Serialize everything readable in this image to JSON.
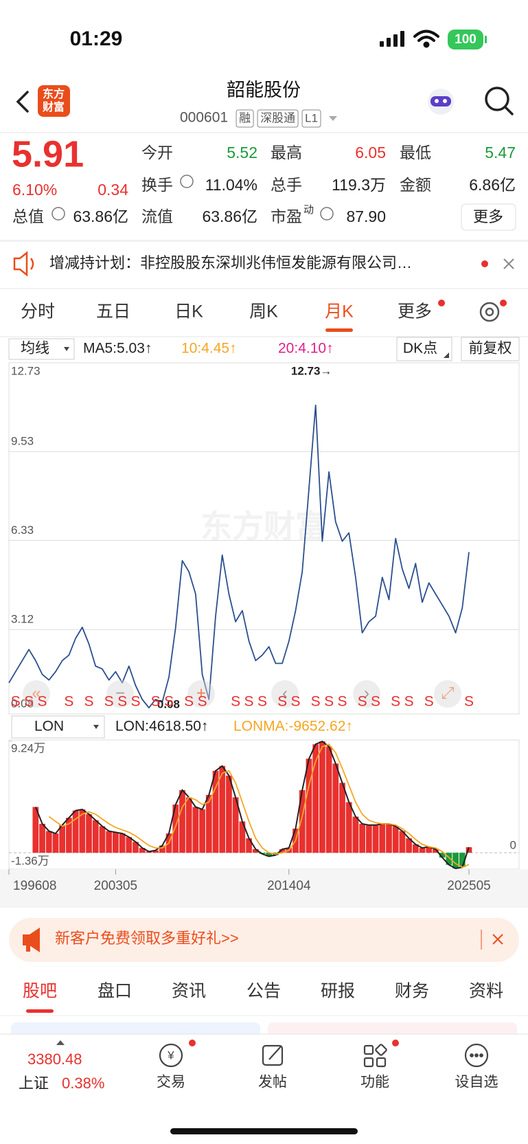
{
  "status": {
    "time": "01:29",
    "battery": "100"
  },
  "header": {
    "logo": [
      "东方",
      "财富"
    ],
    "title": "韶能股份",
    "code": "000601",
    "badges": [
      "融",
      "深股通",
      "L1"
    ]
  },
  "quote": {
    "price": "5.91",
    "change_pct": "6.10%",
    "change": "0.34",
    "more": "更多",
    "fields": [
      {
        "label": "今开",
        "value": "5.52",
        "color": "#1a9a3a"
      },
      {
        "label": "最高",
        "value": "6.05",
        "color": "#e8312f"
      },
      {
        "label": "最低",
        "value": "5.47",
        "color": "#1a9a3a"
      },
      {
        "label": "换手",
        "value": "11.04%",
        "color": "#222222"
      },
      {
        "label": "总手",
        "value": "119.3万",
        "color": "#222222"
      },
      {
        "label": "金额",
        "value": "6.86亿",
        "color": "#222222"
      },
      {
        "label": "总值",
        "value": "63.86亿",
        "color": "#222222"
      },
      {
        "label": "流值",
        "value": "63.86亿",
        "color": "#222222"
      },
      {
        "label": "市盈",
        "sup": "动",
        "value": "87.90",
        "color": "#222222"
      }
    ]
  },
  "notice": "增减持计划：非控股股东深圳兆伟恒发能源有限公司…",
  "tabs": {
    "items": [
      "分时",
      "五日",
      "日K",
      "周K",
      "月K",
      "更多"
    ],
    "active": 4
  },
  "indicator": {
    "selector": "均线",
    "ma5": "MA5:5.03↑",
    "ma10": "10:4.45↑",
    "ma20": "20:4.10↑",
    "dk": "DK点",
    "adjust": "前复权"
  },
  "watermark": "东方财富",
  "signals": {
    "label": "S",
    "at": [
      1,
      3,
      5,
      9,
      12,
      15,
      17,
      19,
      22,
      24,
      27,
      29,
      34,
      36,
      38,
      41,
      43,
      46,
      48,
      50,
      53,
      55,
      58,
      60,
      63,
      69
    ]
  },
  "chart_data": [
    {
      "type": "line",
      "color": "#2a4f8f",
      "grid": true,
      "ylim": [
        0.08,
        12.73
      ],
      "yticks": [
        12.73,
        9.53,
        6.33,
        3.12,
        0.08
      ],
      "high_label": "12.73→",
      "low_label": "0.08",
      "values": [
        1.2,
        1.6,
        2.0,
        2.4,
        2.0,
        1.5,
        1.3,
        1.6,
        2.0,
        2.2,
        2.8,
        3.2,
        2.6,
        1.8,
        1.7,
        1.3,
        1.6,
        1.2,
        1.8,
        1.1,
        0.6,
        0.3,
        0.6,
        0.5,
        1.4,
        3.2,
        5.6,
        5.2,
        4.4,
        1.5,
        0.6,
        3.6,
        5.8,
        4.4,
        3.4,
        3.8,
        2.7,
        2.0,
        2.2,
        2.5,
        1.9,
        1.9,
        2.7,
        3.8,
        5.2,
        8.2,
        11.2,
        6.3,
        8.8,
        7.0,
        6.3,
        6.6,
        5.0,
        3.0,
        3.4,
        3.6,
        5.0,
        4.2,
        6.4,
        5.3,
        4.6,
        5.5,
        4.1,
        4.8,
        4.4,
        4.0,
        3.6,
        3.0,
        3.9,
        5.91
      ]
    },
    {
      "type": "bar",
      "indicator": "LON",
      "ylim": [
        -1.36,
        9.24
      ],
      "yticks": [
        {
          "value": 9.24,
          "label": "9.24万"
        },
        0,
        {
          "value": -1.36,
          "label": "-1.36万"
        }
      ],
      "categories": [
        "199608",
        null,
        null,
        null,
        null,
        null,
        null,
        null,
        null,
        null,
        null,
        null,
        null,
        null,
        null,
        null,
        "200305",
        null,
        null,
        null,
        null,
        null,
        null,
        null,
        null,
        null,
        null,
        null,
        null,
        null,
        null,
        null,
        null,
        null,
        null,
        null,
        null,
        null,
        null,
        null,
        null,
        null,
        "201404",
        null,
        null,
        null,
        null,
        null,
        null,
        null,
        null,
        null,
        null,
        null,
        null,
        null,
        null,
        null,
        null,
        null,
        null,
        null,
        null,
        null,
        null,
        null,
        null,
        null,
        null,
        "202505"
      ],
      "series": [
        {
          "name": "LON:4618.50↑",
          "color": "#e8312f",
          "negative_color": "#1a9a3a",
          "outline": "#222222",
          "values": [
            null,
            null,
            null,
            null,
            3.8,
            2.4,
            1.8,
            1.6,
            2.3,
            2.9,
            3.5,
            3.6,
            3.2,
            2.7,
            2.2,
            1.8,
            1.7,
            1.6,
            1.3,
            0.9,
            0.4,
            0.1,
            0.2,
            0.6,
            1.6,
            4.0,
            5.2,
            4.6,
            3.8,
            3.6,
            4.8,
            6.8,
            7.2,
            6.4,
            4.6,
            2.6,
            1.2,
            0.3,
            -0.1,
            -0.3,
            -0.2,
            0.3,
            0.4,
            2.0,
            5.2,
            7.8,
            9.0,
            9.24,
            8.8,
            7.4,
            5.8,
            4.2,
            3.0,
            2.4,
            2.3,
            2.3,
            2.4,
            2.4,
            2.2,
            1.8,
            1.2,
            0.7,
            0.4,
            0.5,
            0.3,
            -0.4,
            -1.0,
            -1.3,
            -1.2,
            0.46
          ]
        },
        {
          "name": "LONMA:-9652.62↑",
          "color": "#f5a623",
          "values": [
            null,
            null,
            null,
            null,
            null,
            null,
            3.0,
            2.6,
            2.2,
            2.4,
            2.8,
            3.2,
            3.4,
            3.2,
            2.8,
            2.4,
            2.1,
            1.9,
            1.7,
            1.4,
            1.0,
            0.6,
            0.4,
            0.4,
            0.8,
            2.2,
            3.8,
            4.6,
            4.4,
            4.0,
            4.2,
            5.4,
            6.6,
            6.8,
            5.8,
            4.2,
            2.6,
            1.2,
            0.4,
            0.0,
            -0.1,
            0.0,
            0.2,
            1.0,
            3.0,
            5.6,
            7.6,
            8.8,
            9.0,
            8.3,
            7.0,
            5.6,
            4.2,
            3.2,
            2.7,
            2.5,
            2.4,
            2.4,
            2.3,
            2.0,
            1.6,
            1.1,
            0.7,
            0.5,
            0.4,
            0.1,
            -0.4,
            -0.9,
            -1.2,
            -0.97
          ]
        }
      ]
    }
  ],
  "promo": "新客户免费领取多重好礼>>",
  "sections": {
    "items": [
      "股吧",
      "盘口",
      "资讯",
      "公告",
      "研报",
      "财务",
      "资料"
    ],
    "active": 0
  },
  "bottom": {
    "index_value": "3380.48",
    "index_name": "上证",
    "index_pct": "0.38%",
    "items": [
      "交易",
      "发帖",
      "功能",
      "设自选"
    ]
  }
}
